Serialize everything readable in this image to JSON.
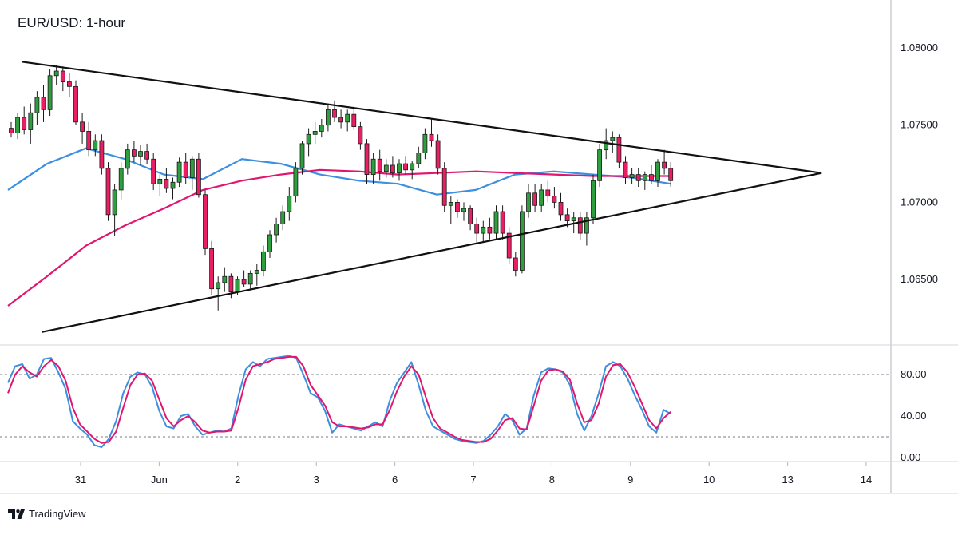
{
  "title": "EUR/USD: 1-hour",
  "brand": {
    "name": "TradingView",
    "icon": "tradingview-logo-icon"
  },
  "colors": {
    "up": "#26a69a",
    "up_body": "#2e9e3e",
    "down": "#e91e63",
    "candle_outline": "#1b1b1b",
    "ma_fast": "#3d8fe0",
    "ma_slow": "#e0166f",
    "trendline": "#111111",
    "stoch_k": "#3d8fe0",
    "stoch_d": "#e0166f",
    "grid": "#e0e3eb"
  },
  "chart_data": [
    {
      "type": "candlestick",
      "title": "EUR/USD: 1-hour",
      "x_tick_labels": [
        "31",
        "Jun",
        "2",
        "3",
        "6",
        "7",
        "8",
        "9",
        "10",
        "13",
        "14"
      ],
      "y_tick_labels": [
        "1.08000",
        "1.07500",
        "1.07000",
        "1.06500"
      ],
      "y_ticks": [
        1.08,
        1.075,
        1.07,
        1.065
      ],
      "ylim": [
        1.0605,
        1.0835
      ],
      "grid": false,
      "overlays": [
        {
          "name": "moving average (blue)",
          "approx_levels": [
            1.0708,
            1.0725,
            1.0735,
            1.0728,
            1.0718,
            1.0715,
            1.0728,
            1.0725,
            1.0718,
            1.0714,
            1.0712,
            1.0705,
            1.0708,
            1.0718,
            1.072,
            1.0718,
            1.0716,
            1.0712
          ]
        },
        {
          "name": "moving average (pink)",
          "approx_levels": [
            1.0633,
            1.0652,
            1.0672,
            1.0685,
            1.0696,
            1.0708,
            1.0714,
            1.0718,
            1.0721,
            1.072,
            1.0718,
            1.0719,
            1.072,
            1.0719,
            1.0718,
            1.0717,
            1.0717,
            1.0717
          ]
        }
      ],
      "trendlines": [
        {
          "name": "upper resistance",
          "from": [
            0,
            1.0791
          ],
          "to": [
            10.3,
            1.0719
          ]
        },
        {
          "name": "lower support",
          "from": [
            0.25,
            1.0616
          ],
          "to": [
            10.3,
            1.0719
          ]
        }
      ],
      "candles": [
        [
          1.0748,
          1.0752,
          1.0742,
          1.0745
        ],
        [
          1.0745,
          1.0758,
          1.0741,
          1.0755
        ],
        [
          1.0755,
          1.0762,
          1.0744,
          1.0747
        ],
        [
          1.0747,
          1.0764,
          1.0738,
          1.0758
        ],
        [
          1.0758,
          1.0772,
          1.075,
          1.0768
        ],
        [
          1.0768,
          1.0776,
          1.0752,
          1.076
        ],
        [
          1.076,
          1.0786,
          1.0756,
          1.0782
        ],
        [
          1.0782,
          1.0789,
          1.0776,
          1.0785
        ],
        [
          1.0785,
          1.0788,
          1.0772,
          1.0778
        ],
        [
          1.0778,
          1.0784,
          1.0768,
          1.0775
        ],
        [
          1.0775,
          1.0779,
          1.075,
          1.0752
        ],
        [
          1.0752,
          1.0758,
          1.0738,
          1.0746
        ],
        [
          1.0746,
          1.0752,
          1.073,
          1.0734
        ],
        [
          1.0734,
          1.0744,
          1.073,
          1.074
        ],
        [
          1.074,
          1.0744,
          1.0718,
          1.0722
        ],
        [
          1.0722,
          1.0726,
          1.0688,
          1.0692
        ],
        [
          1.0692,
          1.0712,
          1.0678,
          1.0708
        ],
        [
          1.0708,
          1.0726,
          1.0702,
          1.0722
        ],
        [
          1.0722,
          1.0738,
          1.0718,
          1.0734
        ],
        [
          1.0734,
          1.074,
          1.0726,
          1.073
        ],
        [
          1.073,
          1.0737,
          1.0724,
          1.0733
        ],
        [
          1.0733,
          1.0738,
          1.0725,
          1.0728
        ],
        [
          1.0728,
          1.0732,
          1.0708,
          1.0712
        ],
        [
          1.0712,
          1.0718,
          1.0704,
          1.0715
        ],
        [
          1.0715,
          1.0722,
          1.0706,
          1.0709
        ],
        [
          1.0709,
          1.0716,
          1.0702,
          1.0713
        ],
        [
          1.0713,
          1.0729,
          1.071,
          1.0726
        ],
        [
          1.0726,
          1.0732,
          1.0712,
          1.0716
        ],
        [
          1.0716,
          1.073,
          1.0708,
          1.0728
        ],
        [
          1.0728,
          1.0732,
          1.0703,
          1.0705
        ],
        [
          1.0705,
          1.0708,
          1.0666,
          1.067
        ],
        [
          1.067,
          1.0675,
          1.064,
          1.0644
        ],
        [
          1.0644,
          1.0652,
          1.063,
          1.0648
        ],
        [
          1.0648,
          1.0658,
          1.0642,
          1.0652
        ],
        [
          1.0652,
          1.0654,
          1.0638,
          1.0642
        ],
        [
          1.0642,
          1.0652,
          1.064,
          1.065
        ],
        [
          1.065,
          1.0656,
          1.0645,
          1.0647
        ],
        [
          1.0647,
          1.0656,
          1.0644,
          1.0654
        ],
        [
          1.0654,
          1.066,
          1.0646,
          1.0656
        ],
        [
          1.0656,
          1.0672,
          1.0652,
          1.0668
        ],
        [
          1.0668,
          1.0682,
          1.0664,
          1.0679
        ],
        [
          1.0679,
          1.069,
          1.0674,
          1.0686
        ],
        [
          1.0686,
          1.0698,
          1.0682,
          1.0694
        ],
        [
          1.0694,
          1.071,
          1.0688,
          1.0704
        ],
        [
          1.0704,
          1.0726,
          1.07,
          1.0722
        ],
        [
          1.0722,
          1.074,
          1.0718,
          1.0738
        ],
        [
          1.0738,
          1.0748,
          1.073,
          1.0744
        ],
        [
          1.0744,
          1.0752,
          1.0738,
          1.0746
        ],
        [
          1.0746,
          1.0754,
          1.0742,
          1.075
        ],
        [
          1.075,
          1.0764,
          1.0746,
          1.076
        ],
        [
          1.076,
          1.0766,
          1.0752,
          1.0755
        ],
        [
          1.0755,
          1.076,
          1.0748,
          1.0752
        ],
        [
          1.0752,
          1.076,
          1.0746,
          1.0757
        ],
        [
          1.0757,
          1.0762,
          1.0747,
          1.0749
        ],
        [
          1.0749,
          1.0752,
          1.0734,
          1.0738
        ],
        [
          1.0738,
          1.0741,
          1.0712,
          1.0718
        ],
        [
          1.0718,
          1.0732,
          1.0712,
          1.0728
        ],
        [
          1.0728,
          1.0734,
          1.0714,
          1.072
        ],
        [
          1.072,
          1.0728,
          1.0716,
          1.0724
        ],
        [
          1.0724,
          1.073,
          1.0716,
          1.0719
        ],
        [
          1.0719,
          1.0728,
          1.0714,
          1.0725
        ],
        [
          1.0725,
          1.073,
          1.0718,
          1.0721
        ],
        [
          1.0721,
          1.0727,
          1.0715,
          1.0725
        ],
        [
          1.0725,
          1.0736,
          1.0722,
          1.0732
        ],
        [
          1.0732,
          1.0748,
          1.0728,
          1.0744
        ],
        [
          1.0744,
          1.0754,
          1.0736,
          1.074
        ],
        [
          1.074,
          1.0744,
          1.0718,
          1.0722
        ],
        [
          1.0722,
          1.0726,
          1.0694,
          1.0698
        ],
        [
          1.0698,
          1.0704,
          1.0686,
          1.07
        ],
        [
          1.07,
          1.0702,
          1.069,
          1.0694
        ],
        [
          1.0694,
          1.07,
          1.0688,
          1.0696
        ],
        [
          1.0696,
          1.0698,
          1.0682,
          1.0686
        ],
        [
          1.0686,
          1.069,
          1.0674,
          1.068
        ],
        [
          1.068,
          1.0688,
          1.0674,
          1.0684
        ],
        [
          1.0684,
          1.069,
          1.0676,
          1.068
        ],
        [
          1.068,
          1.0698,
          1.0676,
          1.0694
        ],
        [
          1.0694,
          1.0698,
          1.0676,
          1.068
        ],
        [
          1.068,
          1.0684,
          1.066,
          1.0664
        ],
        [
          1.0664,
          1.0668,
          1.0652,
          1.0656
        ],
        [
          1.0656,
          1.0698,
          1.0654,
          1.0694
        ],
        [
          1.0694,
          1.0712,
          1.069,
          1.0706
        ],
        [
          1.0706,
          1.0712,
          1.0694,
          1.0698
        ],
        [
          1.0698,
          1.0712,
          1.0694,
          1.0708
        ],
        [
          1.0708,
          1.0714,
          1.07,
          1.0704
        ],
        [
          1.0704,
          1.071,
          1.0696,
          1.07
        ],
        [
          1.07,
          1.0706,
          1.0688,
          1.0692
        ],
        [
          1.0692,
          1.0696,
          1.0684,
          1.0688
        ],
        [
          1.0688,
          1.0694,
          1.068,
          1.069
        ],
        [
          1.069,
          1.0694,
          1.0676,
          1.068
        ],
        [
          1.068,
          1.0694,
          1.0672,
          1.069
        ],
        [
          1.069,
          1.0718,
          1.0686,
          1.0714
        ],
        [
          1.0714,
          1.0738,
          1.071,
          1.0734
        ],
        [
          1.0734,
          1.0748,
          1.0728,
          1.074
        ],
        [
          1.074,
          1.0746,
          1.0732,
          1.0742
        ],
        [
          1.0742,
          1.0744,
          1.0722,
          1.0726
        ],
        [
          1.0726,
          1.073,
          1.0712,
          1.0716
        ],
        [
          1.0716,
          1.0722,
          1.0712,
          1.0718
        ],
        [
          1.0718,
          1.0722,
          1.071,
          1.0714
        ],
        [
          1.0714,
          1.072,
          1.0708,
          1.0718
        ],
        [
          1.0718,
          1.0724,
          1.0712,
          1.0714
        ],
        [
          1.0714,
          1.0728,
          1.071,
          1.0726
        ],
        [
          1.0726,
          1.0734,
          1.0718,
          1.0722
        ],
        [
          1.0722,
          1.0726,
          1.071,
          1.0714
        ]
      ]
    },
    {
      "type": "line",
      "title": "Stochastic",
      "y_tick_labels": [
        "80.00",
        "40.00",
        "0.00"
      ],
      "y_ticks": [
        80,
        40,
        0
      ],
      "reference_levels": [
        80,
        20
      ],
      "ylim": [
        -5,
        105
      ],
      "series": [
        {
          "name": "%K",
          "values": [
            72,
            88,
            90,
            76,
            80,
            95,
            96,
            82,
            66,
            35,
            28,
            22,
            12,
            10,
            18,
            35,
            62,
            78,
            82,
            80,
            68,
            45,
            30,
            28,
            40,
            42,
            30,
            22,
            24,
            26,
            25,
            28,
            60,
            85,
            92,
            88,
            95,
            96,
            97,
            98,
            96,
            80,
            62,
            58,
            45,
            24,
            32,
            30,
            28,
            26,
            30,
            34,
            30,
            55,
            72,
            82,
            92,
            70,
            45,
            30,
            26,
            22,
            18,
            16,
            15,
            14,
            16,
            22,
            30,
            42,
            36,
            22,
            28,
            60,
            82,
            86,
            85,
            82,
            70,
            42,
            26,
            40,
            62,
            88,
            92,
            88,
            76,
            60,
            46,
            30,
            24,
            46,
            42
          ]
        },
        {
          "name": "%D",
          "values": [
            62,
            80,
            88,
            82,
            78,
            88,
            94,
            88,
            74,
            48,
            32,
            25,
            18,
            14,
            15,
            25,
            48,
            70,
            80,
            81,
            74,
            56,
            38,
            30,
            36,
            40,
            34,
            26,
            24,
            25,
            25,
            26,
            48,
            75,
            88,
            90,
            92,
            95,
            96,
            97,
            97,
            88,
            70,
            60,
            50,
            34,
            30,
            30,
            29,
            28,
            29,
            32,
            32,
            46,
            64,
            78,
            88,
            80,
            58,
            38,
            28,
            24,
            20,
            17,
            16,
            15,
            15,
            18,
            26,
            36,
            38,
            28,
            27,
            50,
            74,
            84,
            85,
            83,
            75,
            52,
            34,
            36,
            52,
            78,
            89,
            90,
            82,
            68,
            52,
            36,
            28,
            38,
            44
          ]
        }
      ]
    }
  ]
}
